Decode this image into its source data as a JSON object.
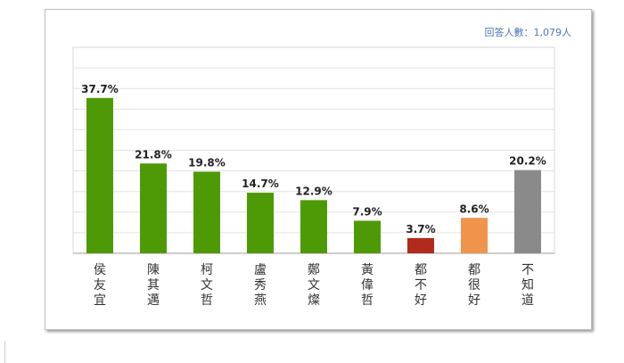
{
  "respondents_label": "回答人數：1,079人",
  "chart_data": {
    "type": "bar",
    "categories": [
      "侯友宜",
      "陳其邁",
      "柯文哲",
      "盧秀燕",
      "鄭文燦",
      "黃偉哲",
      "都不好",
      "都很好",
      "不知道"
    ],
    "values": [
      37.7,
      21.8,
      19.8,
      14.7,
      12.9,
      7.9,
      3.7,
      8.6,
      20.2
    ],
    "value_labels": [
      "37.7%",
      "21.8%",
      "19.8%",
      "14.7%",
      "12.9%",
      "7.9%",
      "3.7%",
      "8.6%",
      "20.2%"
    ],
    "colors": [
      "#4e9a06",
      "#4e9a06",
      "#4e9a06",
      "#4e9a06",
      "#4e9a06",
      "#4e9a06",
      "#b22a1e",
      "#f0944c",
      "#8a8a8a"
    ],
    "ylim": [
      0,
      50
    ],
    "grid": true,
    "title": "",
    "xlabel": "",
    "ylabel": ""
  }
}
